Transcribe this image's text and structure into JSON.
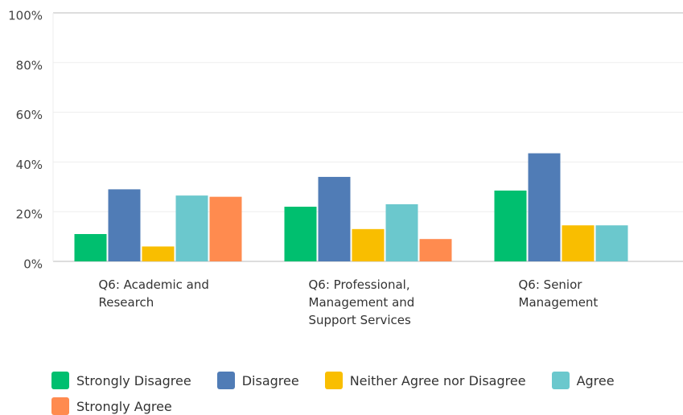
{
  "chart_data": {
    "type": "bar",
    "categories": [
      "Q6: Academic and Research",
      "Q6: Professional, Management and Support Services",
      "Q6: Senior Management"
    ],
    "series": [
      {
        "name": "Strongly Disagree",
        "color": "#00bf6f",
        "values": [
          11,
          22,
          28.5
        ]
      },
      {
        "name": "Disagree",
        "color": "#507cb6",
        "values": [
          29,
          34,
          43.5
        ]
      },
      {
        "name": "Neither Agree nor Disagree",
        "color": "#f9be00",
        "values": [
          6,
          13,
          14.5
        ]
      },
      {
        "name": "Agree",
        "color": "#6bc8cd",
        "values": [
          26.5,
          23,
          14.5
        ]
      },
      {
        "name": "Strongly Agree",
        "color": "#ff8b4f",
        "values": [
          26,
          9,
          null
        ]
      }
    ],
    "ylim": [
      0,
      100
    ],
    "yticks": [
      {
        "value": 0,
        "label": "0%"
      },
      {
        "value": 20,
        "label": "20%"
      },
      {
        "value": 40,
        "label": "40%"
      },
      {
        "value": 60,
        "label": "60%"
      },
      {
        "value": 80,
        "label": "80%"
      },
      {
        "value": 100,
        "label": "100%"
      }
    ],
    "grid": true
  }
}
